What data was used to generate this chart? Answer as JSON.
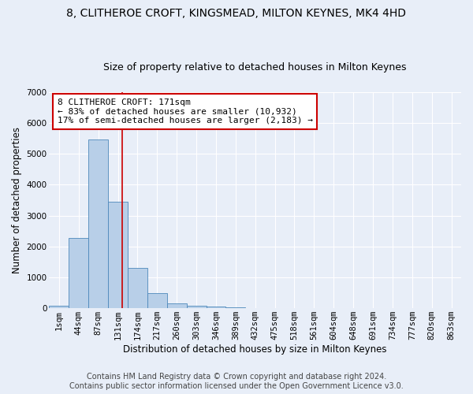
{
  "title": "8, CLITHEROE CROFT, KINGSMEAD, MILTON KEYNES, MK4 4HD",
  "subtitle": "Size of property relative to detached houses in Milton Keynes",
  "xlabel": "Distribution of detached houses by size in Milton Keynes",
  "ylabel": "Number of detached properties",
  "footer_line1": "Contains HM Land Registry data © Crown copyright and database right 2024.",
  "footer_line2": "Contains public sector information licensed under the Open Government Licence v3.0.",
  "bar_labels": [
    "1sqm",
    "44sqm",
    "87sqm",
    "131sqm",
    "174sqm",
    "217sqm",
    "260sqm",
    "303sqm",
    "346sqm",
    "389sqm",
    "432sqm",
    "475sqm",
    "518sqm",
    "561sqm",
    "604sqm",
    "648sqm",
    "691sqm",
    "734sqm",
    "777sqm",
    "820sqm",
    "863sqm"
  ],
  "bar_values": [
    70,
    2280,
    5470,
    3450,
    1310,
    480,
    155,
    85,
    65,
    40,
    0,
    0,
    0,
    0,
    0,
    0,
    0,
    0,
    0,
    0,
    0
  ],
  "bar_color": "#b8cfe8",
  "bar_edge_color": "#4d88bb",
  "vline_x": 3.72,
  "vline_color": "#cc0000",
  "annotation_text": "8 CLITHEROE CROFT: 171sqm\n← 83% of detached houses are smaller (10,932)\n17% of semi-detached houses are larger (2,183) →",
  "annotation_box_color": "#cc0000",
  "annotation_text_color": "#000000",
  "ylim": [
    0,
    7000
  ],
  "yticks": [
    0,
    1000,
    2000,
    3000,
    4000,
    5000,
    6000,
    7000
  ],
  "background_color": "#e8eef8",
  "plot_bg_color": "#e8eef8",
  "grid_color": "#ffffff",
  "title_fontsize": 10,
  "subtitle_fontsize": 9,
  "axis_fontsize": 8.5,
  "tick_fontsize": 7.5,
  "footer_fontsize": 7
}
